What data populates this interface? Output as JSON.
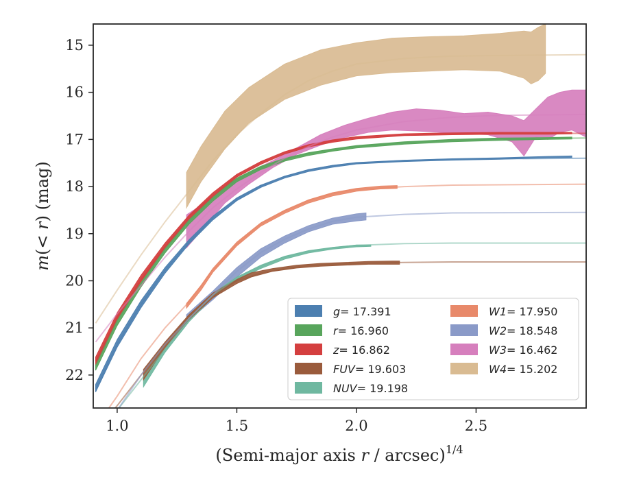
{
  "chart_data": {
    "type": "line",
    "xlabel": "(Semi-major axis r / arcsec)^1/4",
    "ylabel": "m(< r) (mag)",
    "xlim": [
      0.9,
      2.96
    ],
    "ylim": [
      22.7,
      14.55
    ],
    "y_inverted": true,
    "xticks": [
      {
        "value": 1.0,
        "label": "1.0"
      },
      {
        "value": 1.5,
        "label": "1.5"
      },
      {
        "value": 2.0,
        "label": "2.0"
      },
      {
        "value": 2.5,
        "label": "2.5"
      }
    ],
    "yticks": [
      {
        "value": 15,
        "label": "15"
      },
      {
        "value": 16,
        "label": "16"
      },
      {
        "value": 17,
        "label": "17"
      },
      {
        "value": 18,
        "label": "18"
      },
      {
        "value": 19,
        "label": "19"
      },
      {
        "value": 20,
        "label": "20"
      },
      {
        "value": 21,
        "label": "21"
      },
      {
        "value": 22,
        "label": "22"
      }
    ],
    "grid": false,
    "legend_position": "lower-right",
    "legend_columns": 2,
    "series": [
      {
        "name": "g = 17.391",
        "legend_prefix": "g",
        "legend_value": "= 17.391",
        "color": "#4c7fb0",
        "model": [
          [
            0.91,
            22.3
          ],
          [
            1.0,
            21.35
          ],
          [
            1.1,
            20.5
          ],
          [
            1.2,
            19.78
          ],
          [
            1.3,
            19.18
          ],
          [
            1.4,
            18.67
          ],
          [
            1.5,
            18.27
          ],
          [
            1.6,
            17.99
          ],
          [
            1.7,
            17.79
          ],
          [
            1.8,
            17.65
          ],
          [
            1.9,
            17.56
          ],
          [
            2.0,
            17.5
          ],
          [
            2.2,
            17.45
          ],
          [
            2.4,
            17.42
          ],
          [
            2.6,
            17.41
          ],
          [
            2.96,
            17.4
          ]
        ],
        "data_x": [
          0.91,
          1.0,
          1.1,
          1.2,
          1.3,
          1.4,
          1.5,
          1.6,
          1.7,
          1.8,
          1.9,
          2.0,
          2.2,
          2.4,
          2.6,
          2.8,
          2.9
        ],
        "data_lo": [
          22.2,
          21.25,
          20.42,
          19.72,
          19.13,
          18.63,
          18.24,
          17.97,
          17.78,
          17.64,
          17.55,
          17.49,
          17.44,
          17.41,
          17.39,
          17.36,
          17.35
        ],
        "data_hi": [
          22.36,
          21.41,
          20.57,
          19.84,
          19.22,
          18.71,
          18.3,
          18.02,
          17.82,
          17.68,
          17.59,
          17.52,
          17.47,
          17.44,
          17.42,
          17.39,
          17.38
        ]
      },
      {
        "name": "r = 16.960",
        "legend_prefix": "r",
        "legend_value": "= 16.960",
        "color": "#58a55c",
        "model": [
          [
            0.91,
            21.8
          ],
          [
            1.0,
            20.85
          ],
          [
            1.1,
            20.05
          ],
          [
            1.2,
            19.33
          ],
          [
            1.3,
            18.73
          ],
          [
            1.4,
            18.25
          ],
          [
            1.5,
            17.85
          ],
          [
            1.6,
            17.6
          ],
          [
            1.7,
            17.42
          ],
          [
            1.8,
            17.3
          ],
          [
            1.9,
            17.22
          ],
          [
            2.0,
            17.15
          ],
          [
            2.2,
            17.07
          ],
          [
            2.4,
            17.02
          ],
          [
            2.6,
            16.99
          ],
          [
            2.96,
            16.97
          ]
        ],
        "data_x": [
          0.91,
          1.0,
          1.1,
          1.2,
          1.3,
          1.4,
          1.5,
          1.6,
          1.7,
          1.8,
          1.9,
          2.0,
          2.2,
          2.4,
          2.6,
          2.8,
          2.9
        ],
        "data_lo": [
          21.72,
          20.78,
          19.98,
          19.28,
          18.69,
          18.21,
          17.82,
          17.57,
          17.4,
          17.28,
          17.2,
          17.13,
          17.05,
          17.0,
          16.97,
          16.96,
          16.95
        ],
        "data_hi": [
          21.9,
          20.95,
          20.13,
          19.41,
          18.8,
          18.31,
          17.9,
          17.64,
          17.46,
          17.34,
          17.25,
          17.18,
          17.1,
          17.05,
          17.02,
          17.0,
          16.99
        ]
      },
      {
        "name": "z = 16.862",
        "legend_prefix": "z",
        "legend_value": "= 16.862",
        "color": "#d43f3f",
        "model": [
          [
            0.91,
            21.7
          ],
          [
            1.0,
            20.75
          ],
          [
            1.1,
            19.95
          ],
          [
            1.2,
            19.25
          ],
          [
            1.3,
            18.65
          ],
          [
            1.4,
            18.17
          ],
          [
            1.5,
            17.77
          ],
          [
            1.6,
            17.5
          ],
          [
            1.7,
            17.28
          ],
          [
            1.8,
            17.13
          ],
          [
            1.9,
            17.03
          ],
          [
            2.0,
            16.96
          ],
          [
            2.2,
            16.9
          ],
          [
            2.4,
            16.88
          ],
          [
            2.96,
            16.87
          ]
        ],
        "data_x": [
          0.91,
          1.0,
          1.1,
          1.2,
          1.3,
          1.4,
          1.5,
          1.6,
          1.7,
          1.8,
          1.9,
          2.0,
          2.2,
          2.4,
          2.6,
          2.8,
          2.9
        ],
        "data_lo": [
          21.62,
          20.68,
          19.88,
          19.2,
          18.61,
          18.13,
          17.74,
          17.47,
          17.26,
          17.11,
          17.01,
          16.94,
          16.88,
          16.86,
          16.85,
          16.85,
          16.85
        ],
        "data_hi": [
          21.78,
          20.82,
          20.01,
          19.3,
          18.69,
          18.21,
          17.8,
          17.53,
          17.31,
          17.16,
          17.06,
          16.99,
          16.92,
          16.9,
          16.89,
          16.89,
          16.88
        ]
      },
      {
        "name": "FUV = 19.603",
        "legend_prefix": "FUV",
        "legend_value": "= 19.603",
        "color": "#9a5b3c",
        "model": [
          [
            0.91,
            23.2
          ],
          [
            1.0,
            22.65
          ],
          [
            1.1,
            22.0
          ],
          [
            1.2,
            21.35
          ],
          [
            1.3,
            20.75
          ],
          [
            1.4,
            20.3
          ],
          [
            1.5,
            20.0
          ],
          [
            1.6,
            19.84
          ],
          [
            1.7,
            19.74
          ],
          [
            1.8,
            19.68
          ],
          [
            1.9,
            19.65
          ],
          [
            2.0,
            19.63
          ],
          [
            2.2,
            19.61
          ],
          [
            2.4,
            19.6
          ],
          [
            2.96,
            19.6
          ]
        ],
        "data_x": [
          1.11,
          1.2,
          1.3,
          1.4,
          1.5,
          1.56,
          1.65,
          1.75,
          1.85,
          1.95,
          2.05,
          2.15,
          2.18
        ],
        "data_lo": [
          21.88,
          21.3,
          20.72,
          20.26,
          19.97,
          19.83,
          19.74,
          19.67,
          19.63,
          19.61,
          19.59,
          19.58,
          19.58
        ],
        "data_hi": [
          22.1,
          21.42,
          20.82,
          20.36,
          20.06,
          19.92,
          19.8,
          19.73,
          19.69,
          19.67,
          19.65,
          19.65,
          19.65
        ]
      },
      {
        "name": "NUV = 19.198",
        "legend_prefix": "NUV",
        "legend_value": "= 19.198",
        "color": "#6fb8a0",
        "model": [
          [
            0.91,
            23.3
          ],
          [
            1.0,
            22.75
          ],
          [
            1.1,
            22.1
          ],
          [
            1.2,
            21.45
          ],
          [
            1.3,
            20.8
          ],
          [
            1.4,
            20.3
          ],
          [
            1.5,
            19.95
          ],
          [
            1.6,
            19.7
          ],
          [
            1.7,
            19.5
          ],
          [
            1.8,
            19.38
          ],
          [
            1.9,
            19.3
          ],
          [
            2.0,
            19.25
          ],
          [
            2.2,
            19.21
          ],
          [
            2.4,
            19.2
          ],
          [
            2.96,
            19.2
          ]
        ],
        "data_x": [
          1.11,
          1.2,
          1.3,
          1.4,
          1.5,
          1.6,
          1.7,
          1.8,
          1.9,
          2.0,
          2.06
        ],
        "data_lo": [
          22.02,
          21.4,
          20.77,
          20.27,
          19.92,
          19.67,
          19.48,
          19.36,
          19.29,
          19.24,
          19.24
        ],
        "data_hi": [
          22.25,
          21.52,
          20.87,
          20.35,
          19.99,
          19.74,
          19.54,
          19.41,
          19.33,
          19.28,
          19.27
        ]
      },
      {
        "name": "W1 = 17.950",
        "legend_prefix": "W1",
        "legend_value": "= 17.950",
        "color": "#e8896a",
        "model": [
          [
            0.91,
            23.1
          ],
          [
            1.0,
            22.45
          ],
          [
            1.1,
            21.65
          ],
          [
            1.2,
            21.0
          ],
          [
            1.3,
            20.45
          ],
          [
            1.4,
            19.78
          ],
          [
            1.5,
            19.22
          ],
          [
            1.6,
            18.8
          ],
          [
            1.7,
            18.52
          ],
          [
            1.8,
            18.3
          ],
          [
            1.9,
            18.15
          ],
          [
            2.0,
            18.06
          ],
          [
            2.2,
            18.0
          ],
          [
            2.4,
            17.97
          ],
          [
            2.96,
            17.95
          ]
        ],
        "data_x": [
          1.29,
          1.35,
          1.4,
          1.5,
          1.6,
          1.7,
          1.8,
          1.9,
          2.0,
          2.1,
          2.17
        ],
        "data_lo": [
          20.48,
          20.1,
          19.74,
          19.18,
          18.77,
          18.5,
          18.28,
          18.13,
          18.04,
          17.99,
          17.98
        ],
        "data_hi": [
          20.58,
          20.2,
          19.82,
          19.26,
          18.84,
          18.57,
          18.35,
          18.2,
          18.1,
          18.05,
          18.04
        ]
      },
      {
        "name": "W2 = 18.548",
        "legend_prefix": "W2",
        "legend_value": "= 18.548",
        "color": "#8a9ac8",
        "model": [
          [
            0.91,
            23.4
          ],
          [
            1.0,
            22.75
          ],
          [
            1.1,
            22.0
          ],
          [
            1.2,
            21.35
          ],
          [
            1.3,
            20.8
          ],
          [
            1.4,
            20.3
          ],
          [
            1.5,
            19.8
          ],
          [
            1.6,
            19.4
          ],
          [
            1.7,
            19.12
          ],
          [
            1.8,
            18.9
          ],
          [
            1.9,
            18.74
          ],
          [
            2.0,
            18.65
          ],
          [
            2.2,
            18.59
          ],
          [
            2.4,
            18.56
          ],
          [
            2.96,
            18.55
          ]
        ],
        "data_x": [
          1.29,
          1.4,
          1.5,
          1.6,
          1.7,
          1.8,
          1.9,
          2.0,
          2.04
        ],
        "data_lo": [
          20.72,
          20.22,
          19.72,
          19.32,
          19.05,
          18.83,
          18.67,
          18.58,
          18.56
        ],
        "data_hi": [
          20.88,
          20.4,
          19.92,
          19.5,
          19.2,
          18.96,
          18.8,
          18.73,
          18.71
        ]
      },
      {
        "name": "W3 = 16.462",
        "legend_prefix": "W3",
        "legend_value": "= 16.462",
        "color": "#d67fbd",
        "model": [
          [
            0.91,
            21.3
          ],
          [
            1.0,
            20.7
          ],
          [
            1.1,
            20.1
          ],
          [
            1.2,
            19.5
          ],
          [
            1.3,
            18.95
          ],
          [
            1.4,
            18.45
          ],
          [
            1.5,
            18.05
          ],
          [
            1.6,
            17.7
          ],
          [
            1.7,
            17.4
          ],
          [
            1.8,
            17.15
          ],
          [
            1.9,
            16.95
          ],
          [
            2.0,
            16.8
          ],
          [
            2.2,
            16.62
          ],
          [
            2.4,
            16.53
          ],
          [
            2.6,
            16.49
          ],
          [
            2.96,
            16.47
          ]
        ],
        "data_x": [
          1.29,
          1.35,
          1.45,
          1.55,
          1.65,
          1.75,
          1.85,
          1.95,
          2.05,
          2.15,
          2.25,
          2.35,
          2.45,
          2.55,
          2.65,
          2.7,
          2.75,
          2.8,
          2.85,
          2.9,
          2.96
        ],
        "data_lo": [
          19.3,
          18.95,
          18.35,
          17.95,
          17.6,
          17.32,
          17.12,
          16.96,
          16.85,
          16.8,
          16.82,
          16.85,
          16.88,
          16.9,
          17.05,
          17.35,
          16.95,
          17.0,
          16.85,
          16.8,
          16.95
        ],
        "data_hi": [
          18.6,
          18.4,
          18.0,
          17.7,
          17.45,
          17.18,
          16.9,
          16.7,
          16.55,
          16.42,
          16.35,
          16.38,
          16.45,
          16.42,
          16.5,
          16.6,
          16.35,
          16.1,
          16.0,
          15.95,
          15.95
        ]
      },
      {
        "name": "W4 = 15.202",
        "legend_prefix": "W4",
        "legend_value": "= 15.202",
        "color": "#d9bb92",
        "model": [
          [
            0.91,
            20.9
          ],
          [
            1.0,
            20.2
          ],
          [
            1.1,
            19.45
          ],
          [
            1.2,
            18.75
          ],
          [
            1.3,
            18.1
          ],
          [
            1.4,
            17.45
          ],
          [
            1.5,
            16.9
          ],
          [
            1.6,
            16.45
          ],
          [
            1.7,
            16.05
          ],
          [
            1.8,
            15.75
          ],
          [
            1.9,
            15.55
          ],
          [
            2.0,
            15.4
          ],
          [
            2.2,
            15.28
          ],
          [
            2.4,
            15.23
          ],
          [
            2.96,
            15.2
          ]
        ],
        "data_x": [
          1.29,
          1.35,
          1.45,
          1.55,
          1.7,
          1.85,
          2.0,
          2.15,
          2.3,
          2.45,
          2.6,
          2.7,
          2.73,
          2.76,
          2.79
        ],
        "data_lo": [
          18.45,
          17.9,
          17.2,
          16.65,
          16.15,
          15.85,
          15.65,
          15.58,
          15.55,
          15.52,
          15.55,
          15.7,
          15.82,
          15.75,
          15.6
        ],
        "data_hi": [
          17.7,
          17.15,
          16.4,
          15.9,
          15.4,
          15.1,
          14.95,
          14.85,
          14.82,
          14.8,
          14.75,
          14.7,
          14.72,
          14.62,
          14.55
        ]
      }
    ]
  }
}
